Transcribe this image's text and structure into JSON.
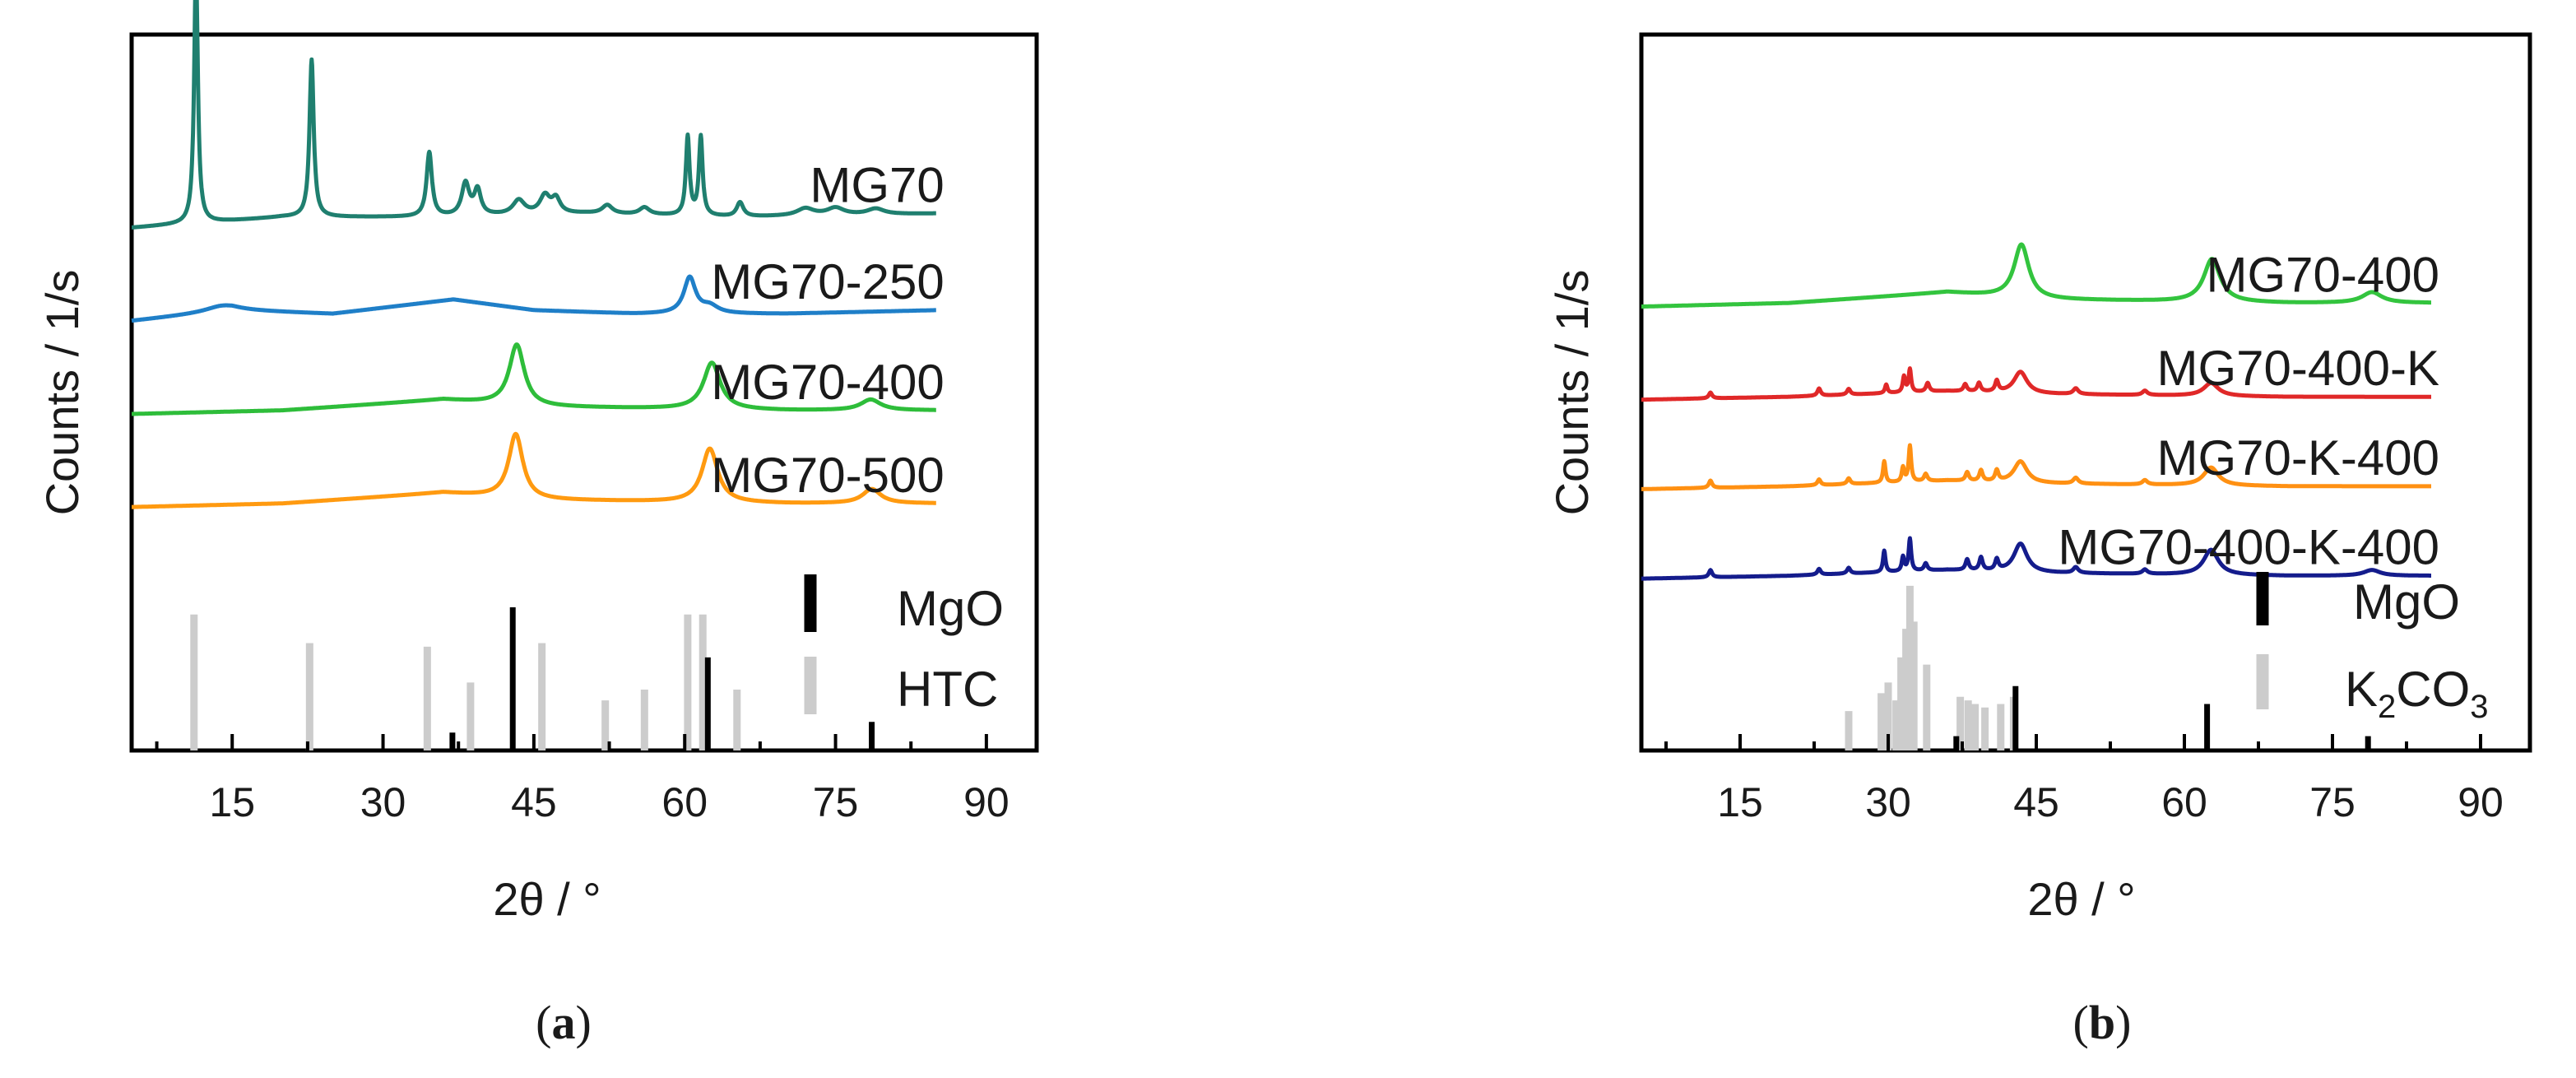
{
  "chart_data": [
    {
      "panel": "a",
      "caption_letter": "a",
      "type": "line",
      "xlabel": "2θ / °",
      "ylabel": "Counts / 1/s",
      "xlim": [
        5,
        95
      ],
      "xticks": [
        15,
        30,
        45,
        60,
        75,
        90
      ],
      "x_minor_step": 7.5,
      "series": [
        {
          "name": "MG70",
          "color": "#1f7f6f",
          "baseline": 0.73,
          "background": [
            [
              5,
              0
            ],
            [
              20,
              0.015
            ],
            [
              35,
              0.015
            ],
            [
              50,
              0.02
            ],
            [
              65,
              0.015
            ],
            [
              85,
              0.02
            ]
          ],
          "peaks": [
            [
              11.4,
              0.36,
              0.22
            ],
            [
              22.9,
              0.22,
              0.25
            ],
            [
              34.6,
              0.09,
              0.32
            ],
            [
              38.2,
              0.045,
              0.45
            ],
            [
              39.4,
              0.035,
              0.4
            ],
            [
              43.5,
              0.02,
              0.7
            ],
            [
              46.1,
              0.025,
              0.6
            ],
            [
              47.2,
              0.02,
              0.5
            ],
            [
              52.3,
              0.012,
              0.6
            ],
            [
              56.0,
              0.01,
              0.6
            ],
            [
              60.3,
              0.11,
              0.22
            ],
            [
              61.6,
              0.11,
              0.22
            ],
            [
              65.5,
              0.02,
              0.4
            ],
            [
              72.0,
              0.01,
              1.0
            ],
            [
              75.0,
              0.01,
              1.0
            ],
            [
              79.0,
              0.008,
              1.0
            ]
          ]
        },
        {
          "name": "MG70-250",
          "color": "#1f7fc8",
          "baseline": 0.6,
          "background": [
            [
              5,
              0
            ],
            [
              15,
              0.015
            ],
            [
              25,
              0.01
            ],
            [
              37,
              0.03
            ],
            [
              45,
              0.015
            ],
            [
              55,
              0.01
            ],
            [
              70,
              0.01
            ],
            [
              85,
              0.015
            ]
          ],
          "peaks": [
            [
              14.0,
              0.008,
              2.0
            ],
            [
              60.5,
              0.05,
              0.7
            ],
            [
              62.5,
              0.01,
              1.0
            ]
          ]
        },
        {
          "name": "MG70-400",
          "color": "#2ebd3a",
          "baseline": 0.47,
          "background": [
            [
              5,
              0
            ],
            [
              20,
              0.005
            ],
            [
              36,
              0.02
            ],
            [
              45,
              0.01
            ],
            [
              70,
              0.005
            ],
            [
              85,
              0.005
            ]
          ],
          "peaks": [
            [
              43.3,
              0.085,
              0.9
            ],
            [
              62.7,
              0.065,
              1.0
            ],
            [
              78.5,
              0.015,
              1.2
            ]
          ]
        },
        {
          "name": "MG70-500",
          "color": "#ff9a10",
          "baseline": 0.34,
          "background": [
            [
              5,
              0
            ],
            [
              20,
              0.005
            ],
            [
              36,
              0.02
            ],
            [
              45,
              0.01
            ],
            [
              70,
              0.005
            ],
            [
              85,
              0.005
            ]
          ],
          "peaks": [
            [
              43.2,
              0.09,
              0.85
            ],
            [
              62.5,
              0.075,
              0.95
            ],
            [
              78.6,
              0.02,
              1.1
            ]
          ]
        }
      ],
      "series_label_x": 85,
      "reference_patterns": [
        {
          "name": "MgO",
          "color": "#000000",
          "line_width": 7,
          "lines": [
            [
              36.9,
              0.025
            ],
            [
              42.9,
              0.2
            ],
            [
              62.3,
              0.13
            ],
            [
              78.6,
              0.04
            ]
          ]
        },
        {
          "name": "HTC",
          "color": "#cccccc",
          "line_width": 9,
          "lines": [
            [
              11.2,
              0.19
            ],
            [
              22.7,
              0.15
            ],
            [
              34.4,
              0.145
            ],
            [
              38.7,
              0.095
            ],
            [
              45.8,
              0.15
            ],
            [
              52.1,
              0.07
            ],
            [
              56.0,
              0.085
            ],
            [
              60.3,
              0.19
            ],
            [
              61.8,
              0.19
            ],
            [
              65.2,
              0.085
            ]
          ]
        }
      ],
      "reference_base": 0.0,
      "legend": [
        {
          "text": "MgO",
          "color": "#000000"
        },
        {
          "text": "HTC",
          "color": "#cccccc"
        }
      ]
    },
    {
      "panel": "b",
      "caption_letter": "b",
      "type": "line",
      "xlabel": "2θ / °",
      "ylabel": "Counts / 1/s",
      "xlim": [
        5,
        95
      ],
      "xticks": [
        15,
        30,
        45,
        60,
        75,
        90
      ],
      "x_minor_step": 7.5,
      "series": [
        {
          "name": "MG70-400",
          "color": "#33c43e",
          "baseline": 0.62,
          "background": [
            [
              5,
              0
            ],
            [
              20,
              0.005
            ],
            [
              36,
              0.02
            ],
            [
              45,
              0.01
            ],
            [
              70,
              0.005
            ],
            [
              85,
              0.005
            ]
          ],
          "peaks": [
            [
              43.5,
              0.075,
              0.9
            ],
            [
              62.8,
              0.06,
              1.0
            ],
            [
              79.0,
              0.015,
              1.2
            ]
          ]
        },
        {
          "name": "MG70-400-K",
          "color": "#e02828",
          "baseline": 0.49,
          "background": [
            [
              5,
              0
            ],
            [
              20,
              0.004
            ],
            [
              36,
              0.012
            ],
            [
              45,
              0.008
            ],
            [
              70,
              0.004
            ],
            [
              85,
              0.004
            ]
          ],
          "peaks": [
            [
              12.0,
              0.008,
              0.2
            ],
            [
              23.0,
              0.01,
              0.2
            ],
            [
              26.0,
              0.008,
              0.2
            ],
            [
              29.8,
              0.012,
              0.15
            ],
            [
              31.6,
              0.022,
              0.15
            ],
            [
              32.2,
              0.032,
              0.15
            ],
            [
              34.0,
              0.012,
              0.2
            ],
            [
              37.8,
              0.01,
              0.2
            ],
            [
              39.2,
              0.012,
              0.2
            ],
            [
              41.0,
              0.015,
              0.2
            ],
            [
              43.4,
              0.03,
              0.8
            ],
            [
              49.0,
              0.008,
              0.3
            ],
            [
              56.0,
              0.006,
              0.3
            ],
            [
              62.7,
              0.018,
              0.9
            ]
          ]
        },
        {
          "name": "MG70-K-400",
          "color": "#ff9012",
          "baseline": 0.365,
          "background": [
            [
              5,
              0
            ],
            [
              20,
              0.004
            ],
            [
              36,
              0.012
            ],
            [
              45,
              0.008
            ],
            [
              70,
              0.004
            ],
            [
              85,
              0.004
            ]
          ],
          "peaks": [
            [
              12.0,
              0.01,
              0.2
            ],
            [
              23.0,
              0.008,
              0.2
            ],
            [
              26.0,
              0.008,
              0.2
            ],
            [
              29.6,
              0.03,
              0.15
            ],
            [
              31.5,
              0.02,
              0.15
            ],
            [
              32.2,
              0.05,
              0.15
            ],
            [
              33.8,
              0.01,
              0.2
            ],
            [
              38.0,
              0.012,
              0.2
            ],
            [
              39.4,
              0.015,
              0.2
            ],
            [
              41.0,
              0.015,
              0.2
            ],
            [
              43.4,
              0.03,
              0.8
            ],
            [
              49.0,
              0.008,
              0.3
            ],
            [
              56.0,
              0.006,
              0.3
            ],
            [
              62.7,
              0.025,
              0.9
            ]
          ]
        },
        {
          "name": "MG70-400-K-400",
          "color": "#141c8c",
          "baseline": 0.24,
          "background": [
            [
              5,
              0
            ],
            [
              20,
              0.004
            ],
            [
              36,
              0.012
            ],
            [
              45,
              0.008
            ],
            [
              70,
              0.004
            ],
            [
              85,
              0.004
            ]
          ],
          "peaks": [
            [
              12.0,
              0.01,
              0.2
            ],
            [
              23.0,
              0.008,
              0.2
            ],
            [
              26.0,
              0.008,
              0.2
            ],
            [
              29.6,
              0.03,
              0.15
            ],
            [
              31.5,
              0.02,
              0.15
            ],
            [
              32.2,
              0.045,
              0.15
            ],
            [
              33.8,
              0.01,
              0.2
            ],
            [
              38.0,
              0.015,
              0.2
            ],
            [
              39.4,
              0.018,
              0.2
            ],
            [
              41.0,
              0.015,
              0.2
            ],
            [
              43.4,
              0.04,
              0.8
            ],
            [
              49.0,
              0.008,
              0.3
            ],
            [
              56.0,
              0.006,
              0.3
            ],
            [
              62.7,
              0.035,
              0.9
            ],
            [
              79.0,
              0.008,
              1.0
            ]
          ]
        }
      ],
      "series_label_x": 85,
      "reference_patterns": [
        {
          "name": "MgO",
          "color": "#000000",
          "line_width": 7,
          "lines": [
            [
              36.9,
              0.02
            ],
            [
              42.9,
              0.09
            ],
            [
              62.3,
              0.065
            ],
            [
              78.6,
              0.02
            ]
          ]
        },
        {
          "name": "K₂CO₃",
          "color": "#cccccc",
          "line_width": 9,
          "lines": [
            [
              26.0,
              0.055
            ],
            [
              29.3,
              0.08
            ],
            [
              30.0,
              0.095
            ],
            [
              30.8,
              0.07
            ],
            [
              31.3,
              0.13
            ],
            [
              31.8,
              0.17
            ],
            [
              32.2,
              0.23
            ],
            [
              32.6,
              0.18
            ],
            [
              33.9,
              0.12
            ],
            [
              37.3,
              0.075
            ],
            [
              38.1,
              0.07
            ],
            [
              38.8,
              0.065
            ],
            [
              39.8,
              0.06
            ],
            [
              41.4,
              0.065
            ],
            [
              42.7,
              0.075
            ]
          ]
        }
      ],
      "reference_base": 0.0,
      "legend": [
        {
          "text": "MgO",
          "color": "#000000"
        },
        {
          "text": "K",
          "sub": "2",
          "text2": "CO",
          "sub2": "3",
          "color": "#cccccc"
        }
      ]
    }
  ]
}
